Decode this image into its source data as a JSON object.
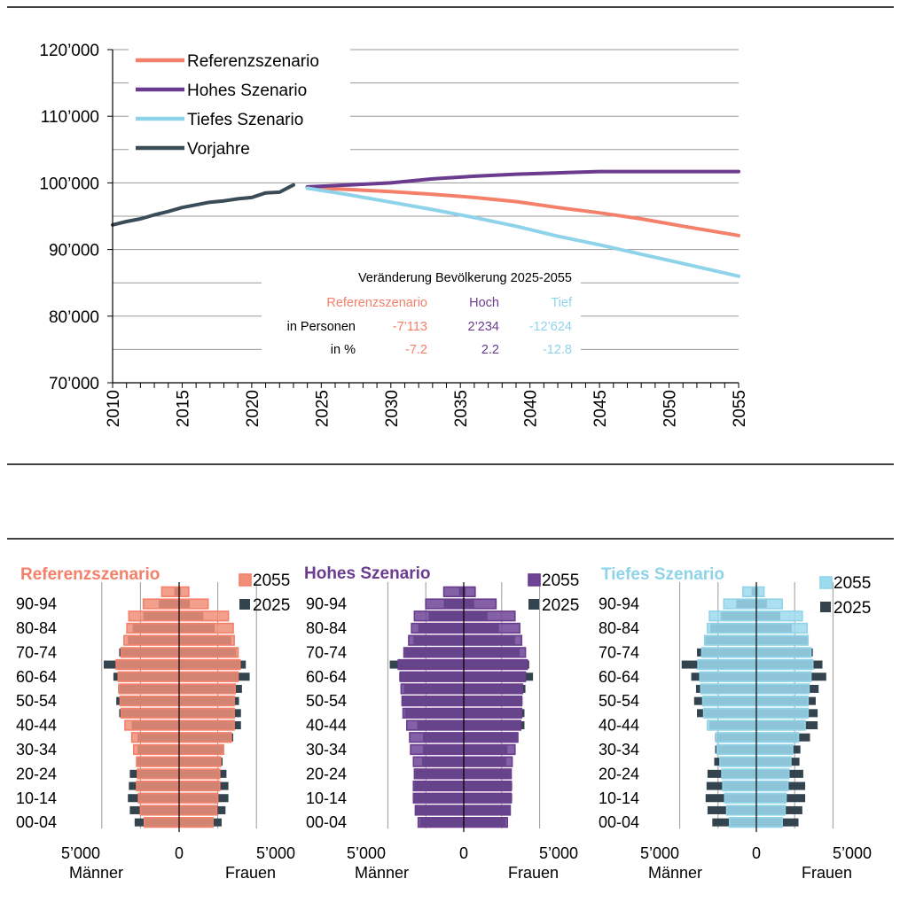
{
  "colors": {
    "referenz": "#F4806A",
    "referenz_fill": "#F08E78",
    "hoch": "#6A3B8E",
    "hoch_fill": "#6E4497",
    "tief": "#8FD3EA",
    "tief_fill": "#9DDBEE",
    "vorjahre": "#3A4C57",
    "bar_2025": "#34444F",
    "grid": "#9A9A9A",
    "text": "#000000"
  },
  "chart_data": [
    {
      "type": "line",
      "title": "",
      "xlabel": "",
      "ylabel": "",
      "xlim": [
        2010,
        2055
      ],
      "ylim": [
        70000,
        120000
      ],
      "yticks": [
        70000,
        80000,
        90000,
        100000,
        110000,
        120000
      ],
      "ytick_labels": [
        "70’000",
        "80’000",
        "90’000",
        "100’000",
        "110’000",
        "120’000"
      ],
      "xticks": [
        2010,
        2015,
        2020,
        2025,
        2030,
        2035,
        2040,
        2045,
        2050,
        2055
      ],
      "xtick_labels": [
        "2010",
        "2015",
        "2020",
        "2025",
        "2030",
        "2035",
        "2040",
        "2045",
        "2050",
        "2055"
      ],
      "grid": true,
      "legend_position": "top-left",
      "series": [
        {
          "name": "Referenzszenario",
          "color": "#F4806A",
          "x": [
            2024,
            2027,
            2030,
            2033,
            2036,
            2039,
            2042,
            2045,
            2048,
            2051,
            2055
          ],
          "y": [
            99300,
            99000,
            98700,
            98300,
            97800,
            97200,
            96300,
            95500,
            94600,
            93500,
            92100
          ]
        },
        {
          "name": "Hohes Szenario",
          "color": "#6A3B8E",
          "x": [
            2024,
            2027,
            2030,
            2033,
            2036,
            2039,
            2042,
            2045,
            2048,
            2051,
            2055
          ],
          "y": [
            99400,
            99700,
            100000,
            100600,
            101000,
            101300,
            101500,
            101700,
            101700,
            101700,
            101700
          ]
        },
        {
          "name": "Tiefes Szenario",
          "color": "#8FD3EA",
          "x": [
            2024,
            2027,
            2030,
            2033,
            2036,
            2039,
            2042,
            2045,
            2048,
            2051,
            2055
          ],
          "y": [
            99200,
            98200,
            97100,
            96000,
            94800,
            93500,
            92000,
            90700,
            89300,
            87900,
            86000
          ]
        },
        {
          "name": "Vorjahre",
          "color": "#3A4C57",
          "x": [
            2010,
            2011,
            2012,
            2013,
            2014,
            2015,
            2016,
            2017,
            2018,
            2019,
            2020,
            2021,
            2022,
            2023
          ],
          "y": [
            93700,
            94200,
            94600,
            95200,
            95700,
            96300,
            96700,
            97100,
            97300,
            97600,
            97800,
            98500,
            98600,
            99700
          ]
        }
      ],
      "annotation": {
        "title": "Veränderung Bevölkerung 2025-2055",
        "headers": [
          "Referenzszenario",
          "Hoch",
          "Tief"
        ],
        "rows": [
          {
            "label": "in Personen",
            "values": [
              "-7’113",
              "2’234",
              "-12’624"
            ]
          },
          {
            "label": "in %",
            "values": [
              "-7.2",
              "2.2",
              "-12.8"
            ]
          }
        ]
      }
    },
    {
      "type": "bar",
      "title": "Referenzszenario",
      "orientation": "horizontal",
      "xlim": [
        -5000,
        5000
      ],
      "xtick_labels": [
        "5’000",
        "0",
        "5’000"
      ],
      "xlabel_left": "Männer",
      "xlabel_right": "Frauen",
      "legend_position": "top-right",
      "age_labels": [
        "00-04",
        "10-14",
        "20-24",
        "30-34",
        "40-44",
        "50-54",
        "60-64",
        "70-74",
        "80-84",
        "90-94"
      ],
      "series": [
        {
          "name": "2055",
          "role": "outline",
          "men": [
            1800,
            2000,
            2100,
            2200,
            2150,
            2200,
            2350,
            2450,
            2800,
            3000,
            3050,
            3100,
            3150,
            3250,
            3000,
            2850,
            2700,
            2600,
            1850,
            900
          ],
          "women": [
            1750,
            1950,
            2000,
            2100,
            2100,
            2150,
            2300,
            2700,
            2850,
            2850,
            2850,
            2900,
            3050,
            3150,
            3050,
            2850,
            2800,
            2550,
            1500,
            500
          ]
        },
        {
          "name": "2025",
          "role": "solid",
          "men": [
            2300,
            2550,
            2650,
            2600,
            2550,
            2200,
            2150,
            2150,
            2450,
            3100,
            3250,
            3150,
            3400,
            3900,
            3100,
            2650,
            2400,
            1850,
            1050,
            250
          ],
          "women": [
            2200,
            2400,
            2550,
            2550,
            2450,
            2250,
            2300,
            2800,
            3200,
            3200,
            3100,
            3250,
            3650,
            3450,
            2950,
            2700,
            1850,
            1250,
            550,
            100
          ]
        }
      ]
    },
    {
      "type": "bar",
      "title": "Hohes Szenario",
      "orientation": "horizontal",
      "xlim": [
        -5000,
        5000
      ],
      "xtick_labels": [
        "5’000",
        "0",
        "5’000"
      ],
      "xlabel_left": "Männer",
      "xlabel_right": "Frauen",
      "legend_position": "top-right",
      "age_labels": [
        "00-04",
        "10-14",
        "20-24",
        "30-34",
        "40-44",
        "50-54",
        "60-64",
        "70-74",
        "80-84",
        "90-94"
      ],
      "series": [
        {
          "name": "2055",
          "role": "outline",
          "men": [
            2400,
            2550,
            2650,
            2650,
            2600,
            2650,
            2800,
            2850,
            3000,
            3200,
            3250,
            3300,
            3350,
            3450,
            3150,
            2900,
            2750,
            2600,
            2000,
            1050
          ],
          "women": [
            2300,
            2450,
            2500,
            2500,
            2500,
            2550,
            2700,
            2850,
            3000,
            3050,
            3050,
            3100,
            3250,
            3350,
            3250,
            3050,
            2950,
            2700,
            1700,
            600
          ]
        },
        {
          "name": "2025",
          "role": "solid",
          "men": [
            2300,
            2550,
            2650,
            2600,
            2550,
            2200,
            2150,
            2150,
            2450,
            3100,
            3250,
            3150,
            3400,
            3900,
            3100,
            2650,
            2400,
            1850,
            1050,
            250
          ],
          "women": [
            2200,
            2400,
            2550,
            2550,
            2450,
            2250,
            2300,
            2800,
            3200,
            3200,
            3100,
            3250,
            3650,
            3450,
            2950,
            2700,
            1850,
            1250,
            550,
            100
          ]
        }
      ]
    },
    {
      "type": "bar",
      "title": "Tiefes Szenario",
      "orientation": "horizontal",
      "xlim": [
        -5000,
        5000
      ],
      "xtick_labels": [
        "5’000",
        "0",
        "5’000"
      ],
      "xlabel_left": "Männer",
      "xlabel_right": "Frauen",
      "legend_position": "top-right",
      "age_labels": [
        "00-04",
        "10-14",
        "20-24",
        "30-34",
        "40-44",
        "50-54",
        "60-64",
        "70-74",
        "80-84",
        "90-94"
      ],
      "series": [
        {
          "name": "2055",
          "role": "outline",
          "men": [
            1400,
            1550,
            1650,
            1750,
            1800,
            1900,
            2050,
            2100,
            2550,
            2750,
            2800,
            2900,
            2950,
            3050,
            2850,
            2700,
            2550,
            2450,
            1700,
            700
          ],
          "women": [
            1350,
            1500,
            1550,
            1650,
            1700,
            1800,
            1900,
            2200,
            2550,
            2700,
            2700,
            2750,
            2850,
            2950,
            2850,
            2700,
            2650,
            2400,
            1350,
            400
          ]
        },
        {
          "name": "2025",
          "role": "solid",
          "men": [
            2300,
            2550,
            2650,
            2600,
            2550,
            2200,
            2150,
            2150,
            2450,
            3100,
            3250,
            3150,
            3400,
            3900,
            3100,
            2650,
            2400,
            1850,
            1050,
            250
          ],
          "women": [
            2200,
            2400,
            2550,
            2550,
            2450,
            2250,
            2300,
            2800,
            3200,
            3200,
            3100,
            3250,
            3650,
            3450,
            2950,
            2700,
            1850,
            1250,
            550,
            100
          ]
        }
      ]
    }
  ]
}
